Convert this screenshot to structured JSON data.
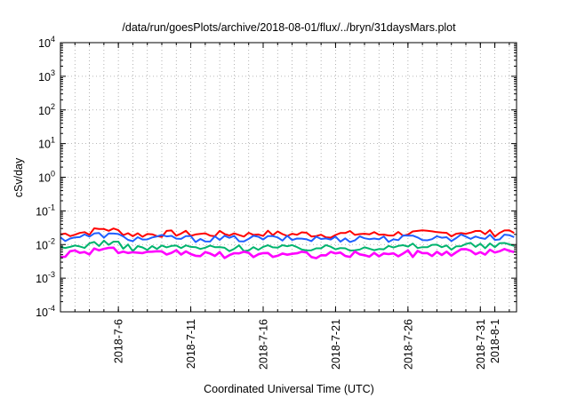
{
  "chart_data": {
    "type": "line",
    "title": "/data/run/goesPlots/archive/2018-08-01/flux/../bryn/31daysMars.plot",
    "xlabel": "Coordinated Universal Time (UTC)",
    "ylabel": "cSv/day",
    "yscale": "log",
    "ylim": [
      0.0001,
      10000
    ],
    "xlim": [
      "2018-07-02",
      "2018-08-02T12:00"
    ],
    "grid": true,
    "x_ticks": [
      "2018-7-6",
      "2018-7-11",
      "2018-7-16",
      "2018-7-21",
      "2018-7-26",
      "2018-7-31",
      "2018-8-1"
    ],
    "y_ticks": [
      {
        "base": "10",
        "exp": "-4"
      },
      {
        "base": "10",
        "exp": "-3"
      },
      {
        "base": "10",
        "exp": "-2"
      },
      {
        "base": "10",
        "exp": "-1"
      },
      {
        "base": "10",
        "exp": "0"
      },
      {
        "base": "10",
        "exp": "1"
      },
      {
        "base": "10",
        "exp": "2"
      },
      {
        "base": "10",
        "exp": "3"
      },
      {
        "base": "10",
        "exp": "4"
      }
    ],
    "series": [
      {
        "color": "#ff0000",
        "values": [
          0.02,
          0.022,
          0.024,
          0.03,
          0.025,
          0.02,
          0.02,
          0.021,
          0.022,
          0.021,
          0.02,
          0.021,
          0.021,
          0.02,
          0.022,
          0.021,
          0.02,
          0.021,
          0.02,
          0.02,
          0.021,
          0.021,
          0.02,
          0.021,
          0.022,
          0.022,
          0.021,
          0.022,
          0.024,
          0.023,
          0.022,
          0.027
        ]
      },
      {
        "color": "#1f5fff",
        "values": [
          0.015,
          0.017,
          0.018,
          0.02,
          0.018,
          0.015,
          0.015,
          0.016,
          0.016,
          0.015,
          0.015,
          0.015,
          0.015,
          0.015,
          0.016,
          0.015,
          0.015,
          0.015,
          0.015,
          0.015,
          0.015,
          0.016,
          0.015,
          0.015,
          0.016,
          0.016,
          0.016,
          0.016,
          0.018,
          0.017,
          0.016,
          0.02
        ]
      },
      {
        "color": "#00b46e",
        "values": [
          0.007,
          0.009,
          0.01,
          0.012,
          0.01,
          0.008,
          0.008,
          0.008,
          0.009,
          0.008,
          0.008,
          0.008,
          0.008,
          0.008,
          0.009,
          0.008,
          0.008,
          0.008,
          0.008,
          0.008,
          0.008,
          0.009,
          0.008,
          0.008,
          0.009,
          0.009,
          0.009,
          0.009,
          0.01,
          0.009,
          0.009,
          0.011
        ]
      },
      {
        "color": "#ff00ff",
        "values": [
          0.005,
          0.006,
          0.0065,
          0.008,
          0.0065,
          0.005,
          0.005,
          0.0055,
          0.006,
          0.0055,
          0.005,
          0.005,
          0.005,
          0.005,
          0.0055,
          0.005,
          0.005,
          0.005,
          0.005,
          0.005,
          0.005,
          0.0055,
          0.005,
          0.005,
          0.0055,
          0.0055,
          0.0055,
          0.006,
          0.0065,
          0.006,
          0.0058,
          0.0072
        ]
      }
    ]
  }
}
